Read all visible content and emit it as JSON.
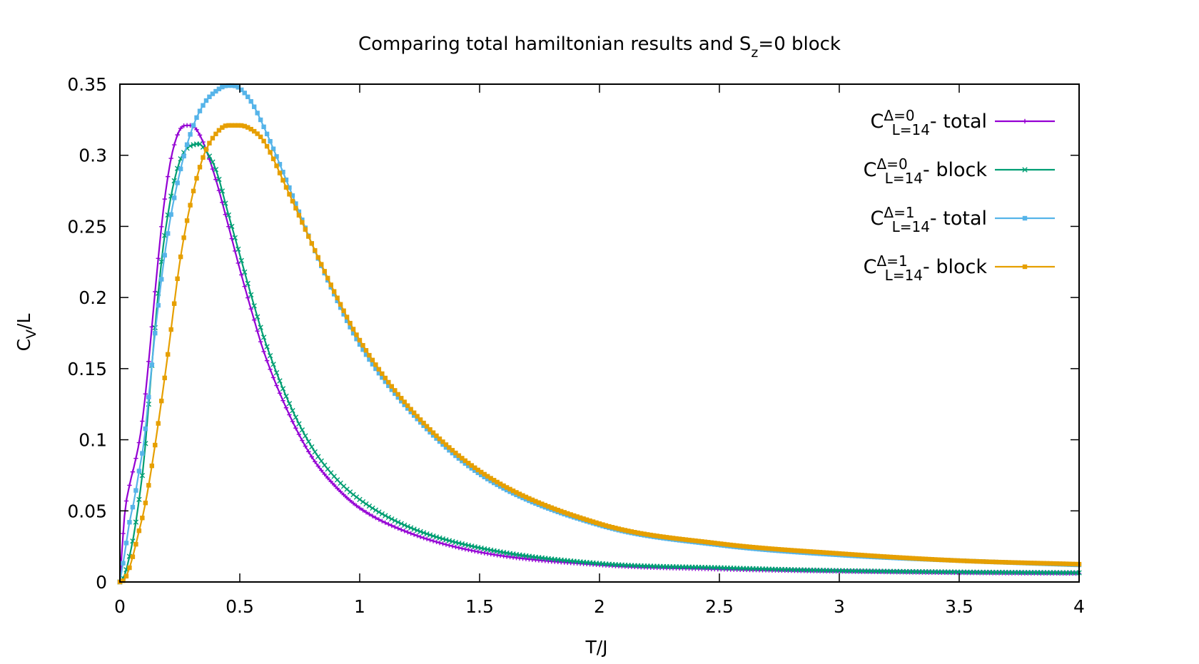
{
  "chart_data": {
    "type": "line",
    "title": "Comparing total hamiltonian results and S",
    "title_sub": "z",
    "title_tail": "=0 block",
    "xlabel": "T/J",
    "ylabel": "C",
    "ylabel_sub": "V",
    "ylabel_tail": "/L",
    "xlim": [
      0,
      4
    ],
    "ylim": [
      0,
      0.35
    ],
    "xticks": [
      "0",
      "0.5",
      "1",
      "1.5",
      "2",
      "2.5",
      "3",
      "3.5",
      "4"
    ],
    "yticks": [
      "0",
      "0.05",
      "0.1",
      "0.15",
      "0.2",
      "0.25",
      "0.3",
      "0.35"
    ],
    "grid": false,
    "legend_position": "top-right",
    "series": [
      {
        "key": "d0-total",
        "legend_base": "C",
        "legend_sup": "Δ=0",
        "legend_sub": "L=14",
        "legend_tail": "- total",
        "color": "#9400d3",
        "marker": "plus",
        "x": [
          0.0,
          0.02,
          0.04,
          0.06,
          0.08,
          0.1,
          0.12,
          0.15,
          0.18,
          0.2,
          0.22,
          0.25,
          0.28,
          0.3,
          0.32,
          0.35,
          0.4,
          0.45,
          0.5,
          0.55,
          0.6,
          0.7,
          0.8,
          0.9,
          1.0,
          1.2,
          1.5,
          2.0,
          2.5,
          3.0,
          3.5,
          4.0
        ],
        "y": [
          0.0,
          0.048,
          0.068,
          0.082,
          0.098,
          0.122,
          0.155,
          0.21,
          0.26,
          0.285,
          0.303,
          0.318,
          0.321,
          0.321,
          0.318,
          0.308,
          0.283,
          0.252,
          0.22,
          0.19,
          0.162,
          0.12,
          0.088,
          0.067,
          0.052,
          0.035,
          0.021,
          0.012,
          0.009,
          0.0075,
          0.0065,
          0.006
        ]
      },
      {
        "key": "d0-block",
        "legend_base": "C",
        "legend_sup": "Δ=0",
        "legend_sub": "L=14",
        "legend_tail": "- block",
        "color": "#009e73",
        "marker": "cross",
        "x": [
          0.0,
          0.02,
          0.04,
          0.06,
          0.08,
          0.1,
          0.12,
          0.15,
          0.18,
          0.2,
          0.22,
          0.25,
          0.28,
          0.3,
          0.33,
          0.35,
          0.4,
          0.45,
          0.5,
          0.55,
          0.6,
          0.7,
          0.8,
          0.9,
          1.0,
          1.2,
          1.5,
          2.0,
          2.5,
          3.0,
          3.5,
          4.0
        ],
        "y": [
          0.0,
          0.005,
          0.018,
          0.035,
          0.058,
          0.085,
          0.125,
          0.185,
          0.235,
          0.258,
          0.277,
          0.296,
          0.305,
          0.307,
          0.308,
          0.305,
          0.29,
          0.26,
          0.23,
          0.2,
          0.172,
          0.128,
          0.095,
          0.073,
          0.058,
          0.039,
          0.024,
          0.013,
          0.01,
          0.008,
          0.007,
          0.0065
        ]
      },
      {
        "key": "d1-total",
        "legend_base": "C",
        "legend_sup": "Δ=1",
        "legend_sub": "L=14",
        "legend_tail": "- total",
        "color": "#56b4e9",
        "marker": "square",
        "x": [
          0.0,
          0.02,
          0.04,
          0.06,
          0.08,
          0.1,
          0.12,
          0.15,
          0.2,
          0.25,
          0.3,
          0.35,
          0.4,
          0.45,
          0.47,
          0.5,
          0.55,
          0.6,
          0.7,
          0.8,
          0.9,
          1.0,
          1.2,
          1.5,
          2.0,
          2.5,
          3.0,
          3.5,
          4.0
        ],
        "y": [
          0.0,
          0.02,
          0.042,
          0.058,
          0.078,
          0.098,
          0.13,
          0.18,
          0.245,
          0.288,
          0.318,
          0.336,
          0.345,
          0.349,
          0.349,
          0.347,
          0.337,
          0.32,
          0.28,
          0.238,
          0.2,
          0.167,
          0.122,
          0.076,
          0.04,
          0.026,
          0.019,
          0.015,
          0.012
        ]
      },
      {
        "key": "d1-block",
        "legend_base": "C",
        "legend_sup": "Δ=1",
        "legend_sub": "L=14",
        "legend_tail": "- block",
        "color": "#e69f00",
        "marker": "filled-square",
        "x": [
          0.0,
          0.02,
          0.04,
          0.06,
          0.08,
          0.1,
          0.12,
          0.15,
          0.2,
          0.25,
          0.3,
          0.35,
          0.4,
          0.45,
          0.5,
          0.55,
          0.6,
          0.7,
          0.8,
          0.9,
          1.0,
          1.2,
          1.5,
          2.0,
          2.5,
          3.0,
          3.5,
          4.0
        ],
        "y": [
          0.0,
          0.002,
          0.01,
          0.022,
          0.036,
          0.05,
          0.068,
          0.1,
          0.16,
          0.225,
          0.27,
          0.3,
          0.315,
          0.321,
          0.321,
          0.318,
          0.31,
          0.275,
          0.238,
          0.202,
          0.17,
          0.124,
          0.078,
          0.041,
          0.027,
          0.02,
          0.015,
          0.0125
        ]
      }
    ]
  }
}
